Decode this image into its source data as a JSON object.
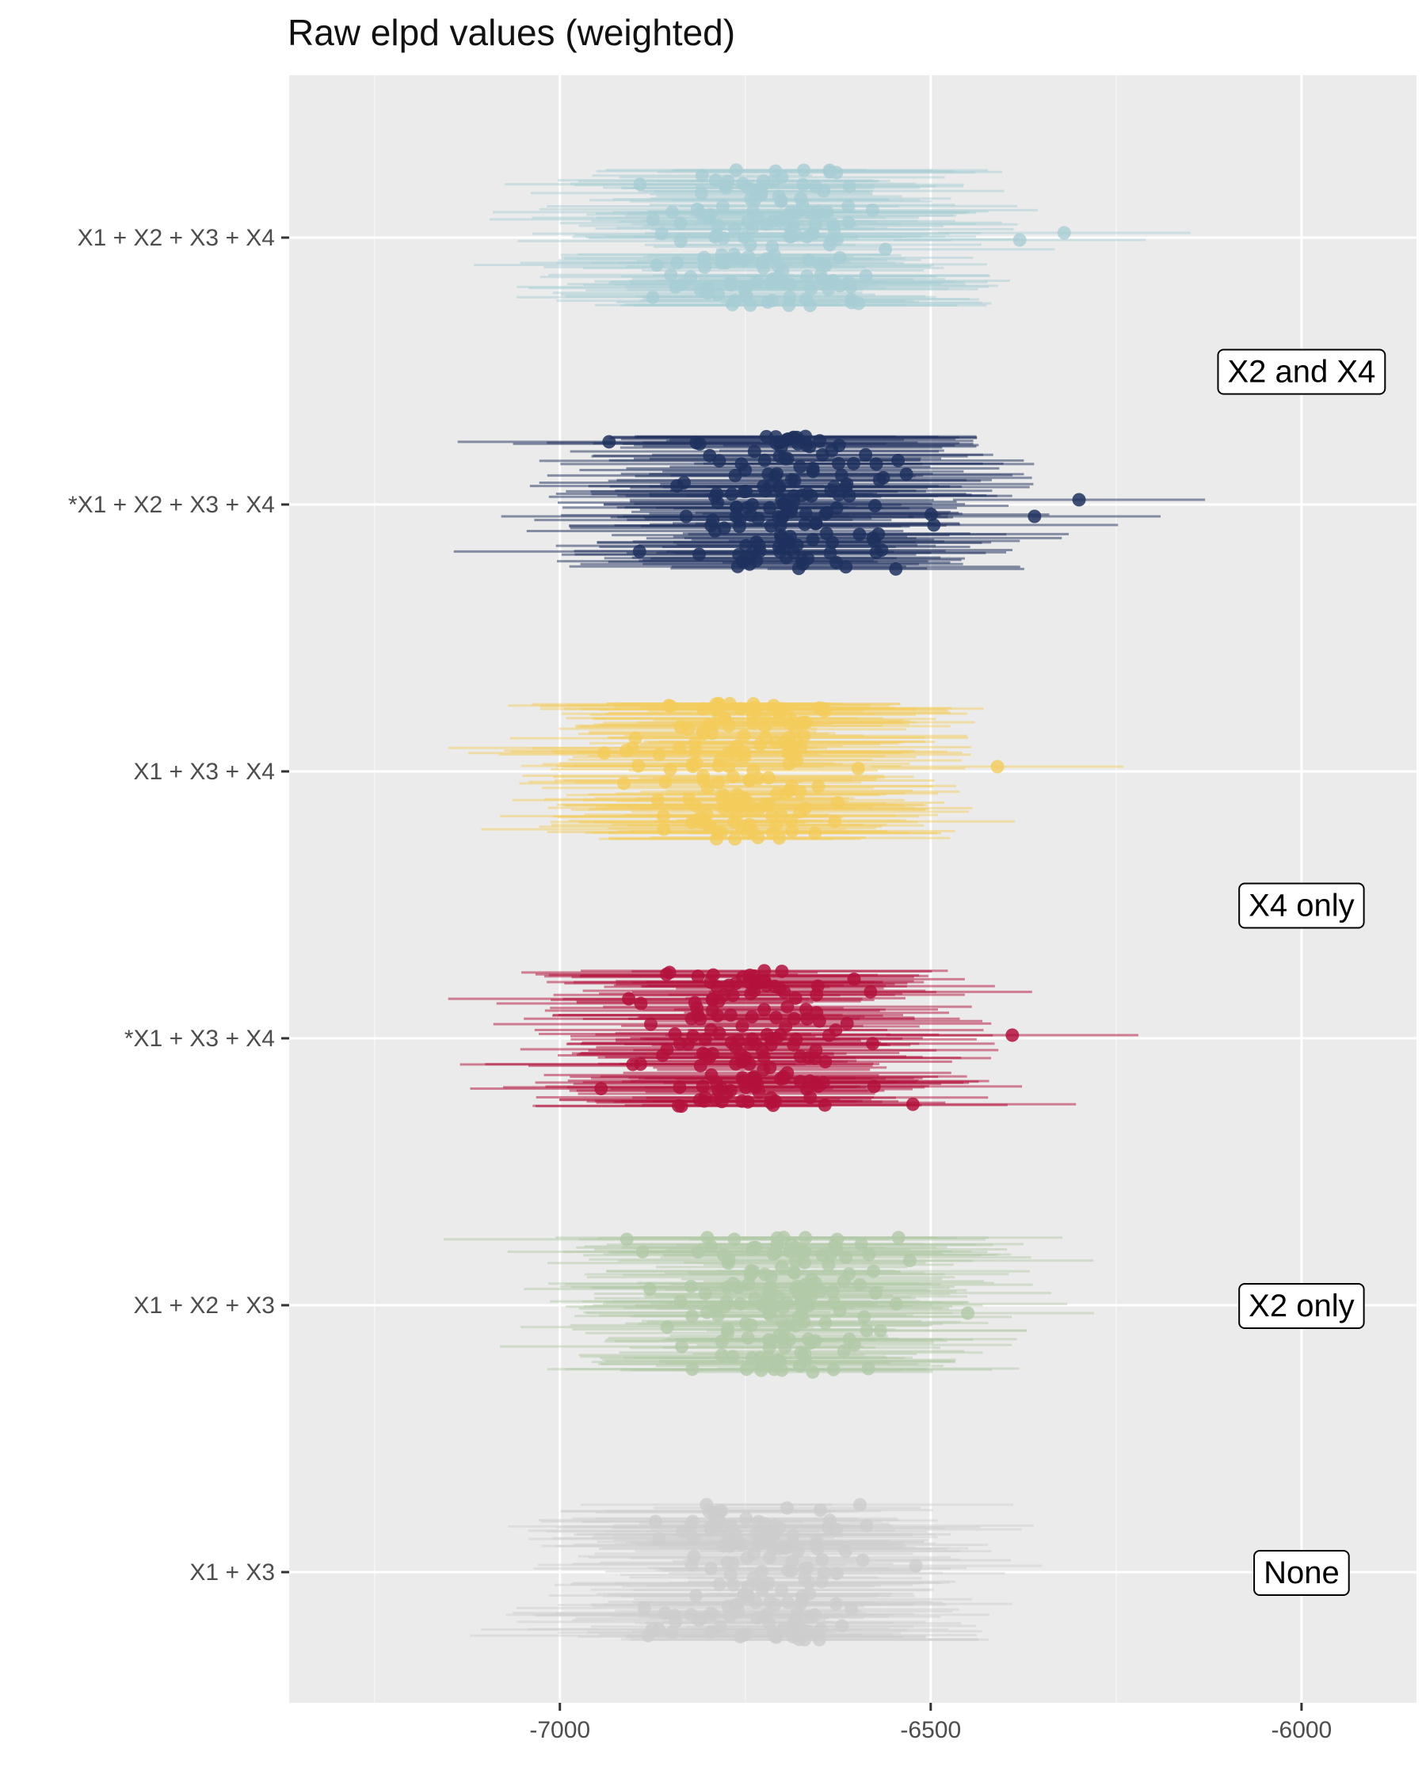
{
  "chart_data": {
    "type": "scatter",
    "title": "Raw elpd values (weighted)",
    "xlabel": "",
    "ylabel": "",
    "xlim": [
      -7365,
      -5845
    ],
    "x_ticks": [
      -7000,
      -6500,
      -6000
    ],
    "x_tick_labels": [
      "-7000",
      "-6500",
      "-6000"
    ],
    "grid": true,
    "legend": "none",
    "categories": [
      "X1 + X2 + X3 + X4",
      "*X1 + X2 + X3 + X4",
      "X1 + X3 + X4",
      "*X1 + X3 + X4",
      "X1 + X2 + X3",
      "X1 + X3"
    ],
    "series": [
      {
        "category": "X1 + X2 + X3 + X4",
        "color": "#a8cdd4",
        "opacity": 0.55,
        "center": -6720,
        "spread": 75,
        "half_width_min": 140,
        "half_width_max": 250,
        "n_draws": 150,
        "outliers": [
          [
            -6380,
            3
          ],
          [
            -6320,
            -6
          ]
        ]
      },
      {
        "category": "*X1 + X2 + X3 + X4",
        "color": "#1f315e",
        "opacity": 0.6,
        "center": -6690,
        "spread": 70,
        "half_width_min": 150,
        "half_width_max": 260,
        "n_draws": 150,
        "outliers": [
          [
            -6360,
            15
          ],
          [
            -6300,
            -6
          ]
        ]
      },
      {
        "category": "X1 + X3 + X4",
        "color": "#f4cc5b",
        "opacity": 0.55,
        "center": -6755,
        "spread": 70,
        "half_width_min": 140,
        "half_width_max": 250,
        "n_draws": 150,
        "outliers": [
          [
            -6410,
            -6
          ]
        ]
      },
      {
        "category": "*X1 + X3 + X4",
        "color": "#b3123c",
        "opacity": 0.6,
        "center": -6745,
        "spread": 70,
        "half_width_min": 140,
        "half_width_max": 250,
        "n_draws": 150,
        "outliers": [
          [
            -6390,
            -4
          ]
        ]
      },
      {
        "category": "X1 + X2 + X3",
        "color": "#b2c9a8",
        "opacity": 0.55,
        "center": -6700,
        "spread": 72,
        "half_width_min": 140,
        "half_width_max": 250,
        "n_draws": 150,
        "outliers": [
          [
            -6450,
            10
          ]
        ]
      },
      {
        "category": "X1 + X3",
        "color": "#cdcdcd",
        "opacity": 0.55,
        "center": -6740,
        "spread": 65,
        "half_width_min": 140,
        "half_width_max": 250,
        "n_draws": 150,
        "outliers": [
          [
            -6520,
            -8
          ]
        ]
      }
    ],
    "annotations": [
      {
        "text": "X2 and X4",
        "x": -6000,
        "y_between": [
          "*X1 + X2 + X3 + X4",
          "X1 + X2 + X3 + X4"
        ],
        "y_frac": 0.5
      },
      {
        "text": "X4 only",
        "x": -6000,
        "y_between": [
          "*X1 + X3 + X4",
          "X1 + X3 + X4"
        ],
        "y_frac": 0.5
      },
      {
        "text": "X2 only",
        "x": -6000,
        "y_between": [
          "X1 + X2 + X3"
        ],
        "y_frac": 0.0
      },
      {
        "text": "None",
        "x": -6000,
        "y_between": [
          "X1 + X3"
        ],
        "y_frac": 0.0
      }
    ]
  },
  "colors": {
    "panel_bg": "#ebebeb",
    "grid_major": "#ffffff",
    "grid_minor": "#f5f5f5"
  }
}
